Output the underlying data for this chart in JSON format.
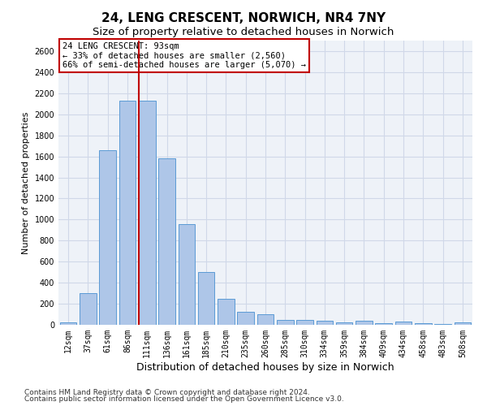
{
  "title": "24, LENG CRESCENT, NORWICH, NR4 7NY",
  "subtitle": "Size of property relative to detached houses in Norwich",
  "xlabel": "Distribution of detached houses by size in Norwich",
  "ylabel": "Number of detached properties",
  "footnote1": "Contains HM Land Registry data © Crown copyright and database right 2024.",
  "footnote2": "Contains public sector information licensed under the Open Government Licence v3.0.",
  "annotation_line1": "24 LENG CRESCENT: 93sqm",
  "annotation_line2": "← 33% of detached houses are smaller (2,560)",
  "annotation_line3": "66% of semi-detached houses are larger (5,070) →",
  "bar_labels": [
    "12sqm",
    "37sqm",
    "61sqm",
    "86sqm",
    "111sqm",
    "136sqm",
    "161sqm",
    "185sqm",
    "210sqm",
    "235sqm",
    "260sqm",
    "285sqm",
    "310sqm",
    "334sqm",
    "359sqm",
    "384sqm",
    "409sqm",
    "434sqm",
    "458sqm",
    "483sqm",
    "508sqm"
  ],
  "bar_values": [
    25,
    300,
    1660,
    2130,
    2130,
    1585,
    955,
    505,
    248,
    125,
    100,
    50,
    45,
    35,
    20,
    35,
    15,
    30,
    15,
    5,
    25
  ],
  "bar_color": "#aec6e8",
  "bar_edge_color": "#5b9bd5",
  "marker_color": "#c00000",
  "marker_bar_index": 4,
  "ylim": [
    0,
    2700
  ],
  "yticks": [
    0,
    200,
    400,
    600,
    800,
    1000,
    1200,
    1400,
    1600,
    1800,
    2000,
    2200,
    2400,
    2600
  ],
  "grid_color": "#d0d8e8",
  "background_color": "#eef2f8",
  "annotation_box_color": "#ffffff",
  "annotation_box_edge": "#c00000",
  "title_fontsize": 11,
  "subtitle_fontsize": 9.5,
  "xlabel_fontsize": 9,
  "ylabel_fontsize": 8,
  "tick_fontsize": 7,
  "annotation_fontsize": 7.5,
  "footnote_fontsize": 6.5
}
